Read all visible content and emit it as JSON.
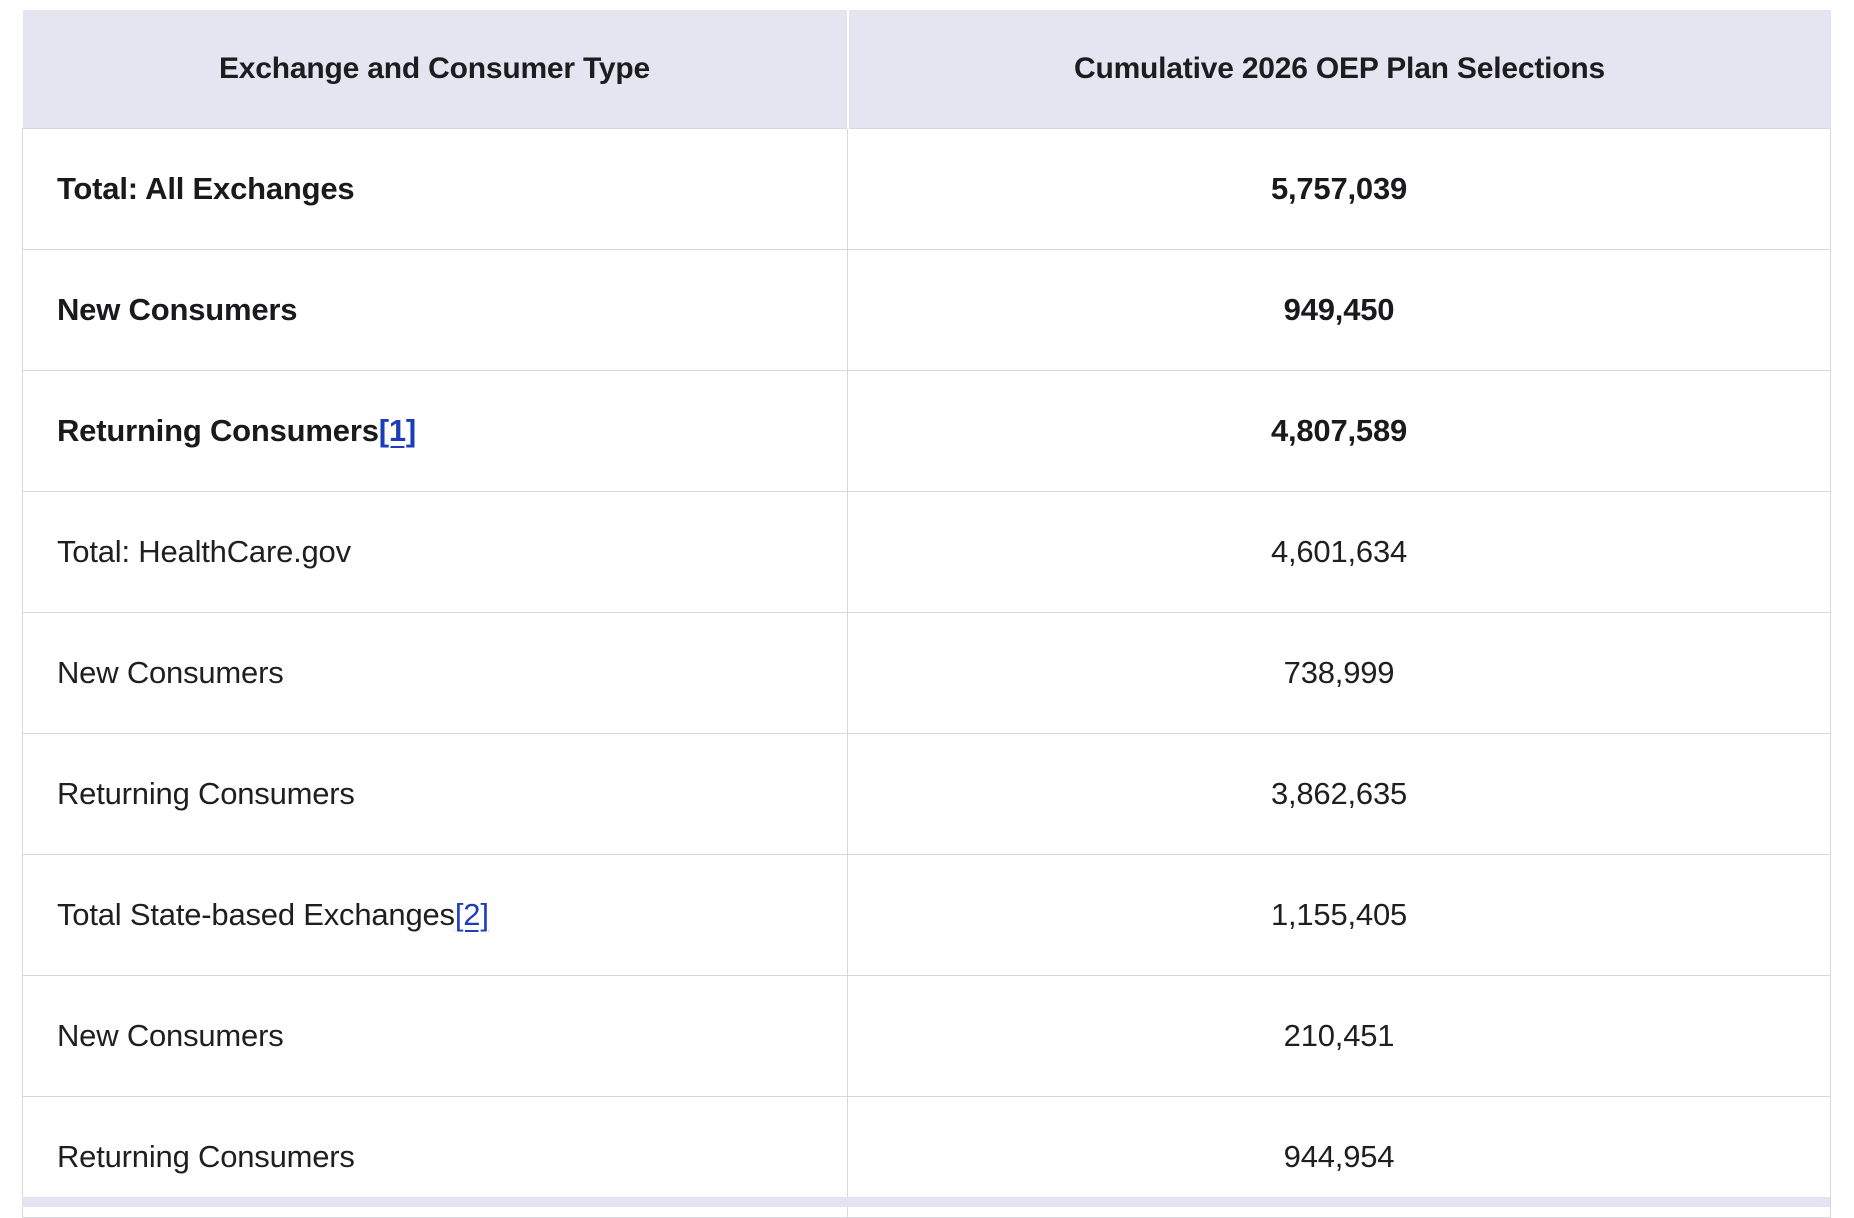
{
  "table": {
    "header": {
      "col1": "Exchange and Consumer Type",
      "col2": "Cumulative 2026 OEP Plan Selections"
    },
    "rows": [
      {
        "label": "Total: All Exchanges",
        "value": "5,757,039",
        "bold": true
      },
      {
        "label": "New Consumers",
        "value": "949,450",
        "bold": true
      },
      {
        "label": "Returning Consumers",
        "footnote": "[1]",
        "value": "4,807,589",
        "bold": true
      },
      {
        "label": "Total: HealthCare.gov",
        "value": "4,601,634",
        "bold": false
      },
      {
        "label": "New Consumers",
        "value": "738,999",
        "bold": false
      },
      {
        "label": "Returning Consumers",
        "value": "3,862,635",
        "bold": false
      },
      {
        "label": "Total State-based Exchanges",
        "footnote": "[2]",
        "value": "1,155,405",
        "bold": false
      },
      {
        "label": "New Consumers",
        "value": "210,451",
        "bold": false
      },
      {
        "label": "Returning Consumers",
        "value": "944,954",
        "bold": false
      }
    ]
  },
  "colors": {
    "header_bg": "#e5e5f1",
    "border": "#d9d9dd",
    "text": "#1f1f1f",
    "link": "#1c3cba",
    "partial_next_header_bg": "#e3e4ef"
  }
}
